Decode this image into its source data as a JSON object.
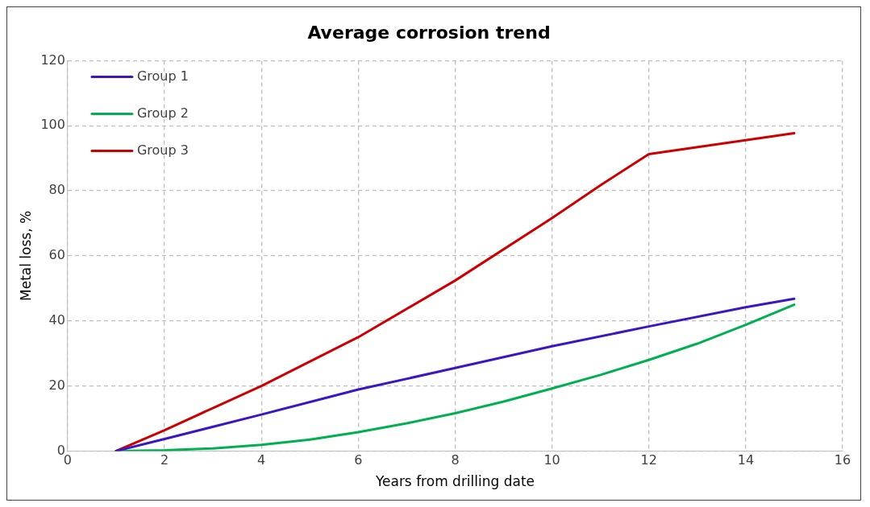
{
  "chart_data": {
    "type": "line",
    "title": "Average corrosion trend",
    "xlabel": "Years from drilling date",
    "ylabel": "Metal loss, %",
    "series": [
      {
        "name": "Group 1",
        "color": "#3a16c4",
        "x": [
          1,
          2,
          4,
          6,
          8,
          10,
          12,
          14,
          15
        ],
        "values": [
          0,
          3.7,
          11.2,
          18.9,
          25.5,
          32.2,
          38.3,
          44.2,
          46.8
        ]
      },
      {
        "name": "Group 2",
        "color": "#00b050",
        "x": [
          1,
          2,
          3,
          4,
          5,
          6,
          7,
          8,
          9,
          10,
          11,
          12,
          13,
          14,
          15
        ],
        "values": [
          0,
          0.2,
          0.8,
          1.9,
          3.5,
          5.8,
          8.5,
          11.6,
          15.2,
          19.2,
          23.4,
          28,
          33,
          38.8,
          45
        ]
      },
      {
        "name": "Group 3",
        "color": "#cc0000",
        "x": [
          1,
          2,
          4,
          6,
          8,
          10,
          11,
          12,
          15
        ],
        "values": [
          0,
          6.4,
          20,
          35,
          52.4,
          71.6,
          81.7,
          91.3,
          97.7
        ]
      }
    ],
    "xlim": [
      0,
      16
    ],
    "xticks": [
      0,
      2,
      4,
      6,
      8,
      10,
      12,
      14,
      16
    ],
    "ylim": [
      0,
      120
    ],
    "yticks": [
      0,
      20,
      40,
      60,
      80,
      100,
      120
    ],
    "grid": true,
    "legend": "top left",
    "marker": "none",
    "line_style": "solid"
  }
}
